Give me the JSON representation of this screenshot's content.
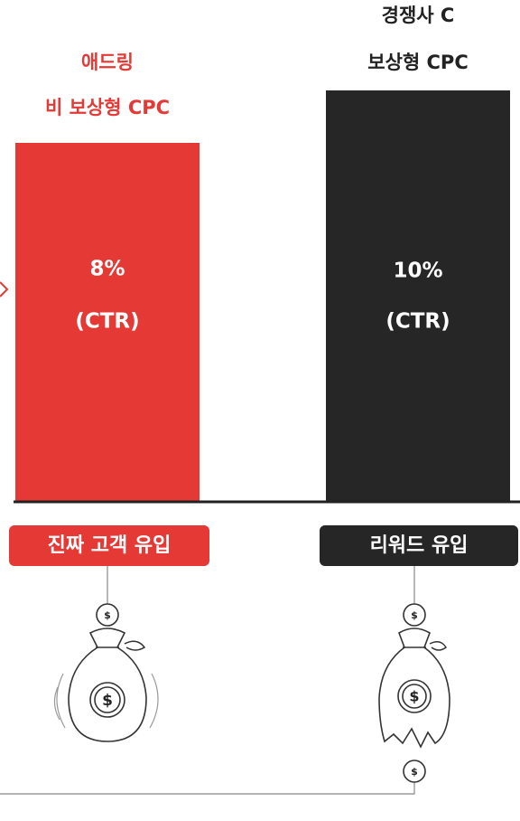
{
  "columns": [
    {
      "title": [
        "애드링",
        "비 보상형 CPC"
      ],
      "value": "8%",
      "metric": "(CTR)",
      "tag": "진짜 고객 유입"
    },
    {
      "title": [
        "경쟁사 C",
        "보상형 CPC"
      ],
      "value": "10%",
      "metric": "(CTR)",
      "tag": "리워드 유입"
    }
  ],
  "currency_symbol": "$"
}
